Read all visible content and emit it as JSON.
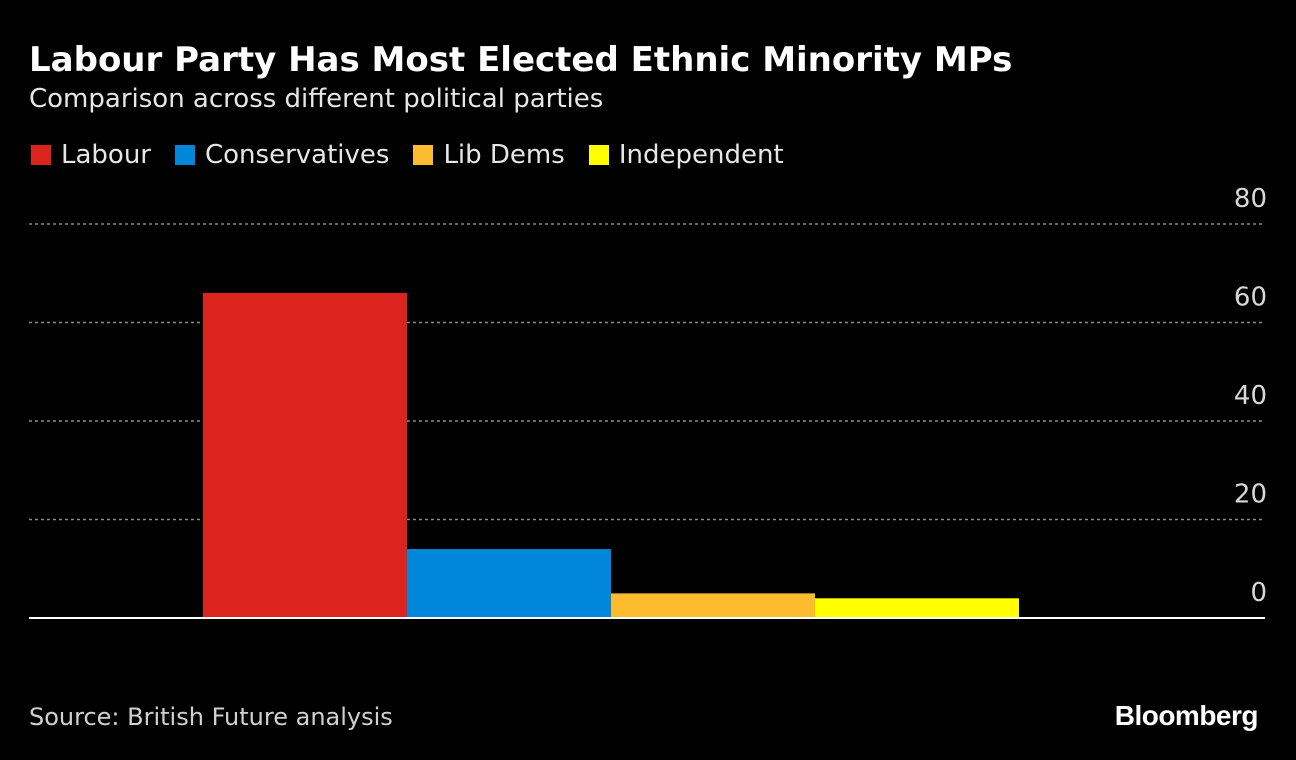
{
  "header": {
    "title": "Labour Party Has Most Elected Ethnic Minority MPs",
    "subtitle": "Comparison across different political parties"
  },
  "colors": {
    "Labour": "#dc241f",
    "Conservatives": "#0087dc",
    "Lib Dems": "#fdbb30",
    "Independent": "#ffff00"
  },
  "chart_data": {
    "type": "bar",
    "title": "Labour Party Has Most Elected Ethnic Minority MPs",
    "subtitle": "Comparison across different political parties",
    "categories": [
      "Labour",
      "Conservatives",
      "Lib Dems",
      "Independent"
    ],
    "values": [
      66,
      14,
      5,
      4
    ],
    "xlabel": "",
    "ylabel": "",
    "ylim": [
      0,
      80
    ],
    "yticks": [
      0,
      20,
      40,
      60,
      80
    ],
    "y_axis_position": "right",
    "grid": true,
    "legend_position": "top-left"
  },
  "legend": {
    "items": [
      {
        "label": "Labour",
        "color": "#dc241f"
      },
      {
        "label": "Conservatives",
        "color": "#0087dc"
      },
      {
        "label": "Lib Dems",
        "color": "#fdbb30"
      },
      {
        "label": "Independent",
        "color": "#ffff00"
      }
    ]
  },
  "footer": {
    "source": "Source: British Future analysis",
    "brand": "Bloomberg"
  }
}
